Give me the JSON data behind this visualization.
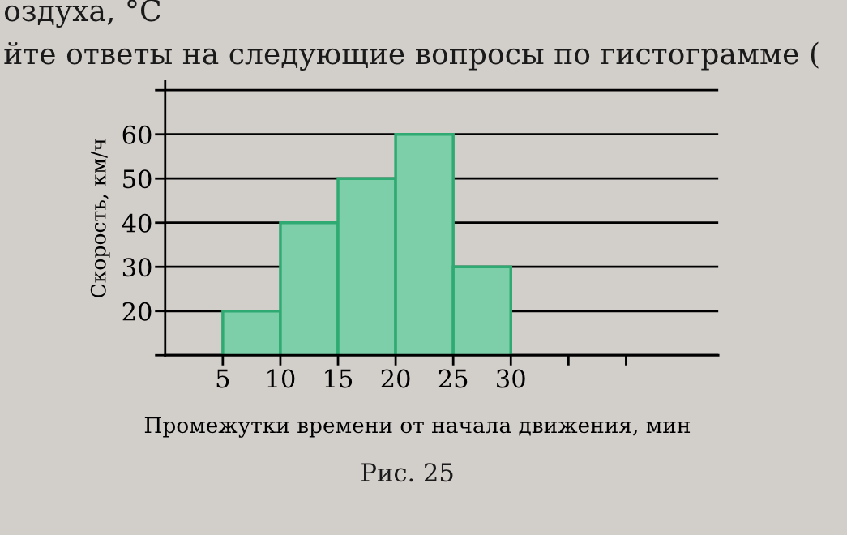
{
  "chart_data": {
    "type": "histogram",
    "xlabel": "Промежутки времени от начала движения, мин",
    "ylabel": "Скорость, км/ч",
    "annotations": [
      "оздуха, °C",
      "йте ответы на следующие вопросы по гистограмме (",
      "Рис. 25"
    ],
    "bins": [
      5,
      10,
      15,
      20,
      25,
      30
    ],
    "values": [
      20,
      40,
      50,
      60,
      30
    ],
    "color": "#7ccfa9",
    "xlim": [
      0,
      48
    ],
    "xticks": [
      5,
      10,
      15,
      20,
      25,
      30,
      {
        "value": 35,
        "label": null
      },
      {
        "value": 40,
        "label": null
      }
    ],
    "ylim": [
      10,
      72
    ],
    "yticks": [
      {
        "value": 10,
        "label": null
      },
      20,
      30,
      40,
      50,
      60,
      {
        "value": 70,
        "label": null
      }
    ],
    "grid": "y",
    "legend": false
  }
}
